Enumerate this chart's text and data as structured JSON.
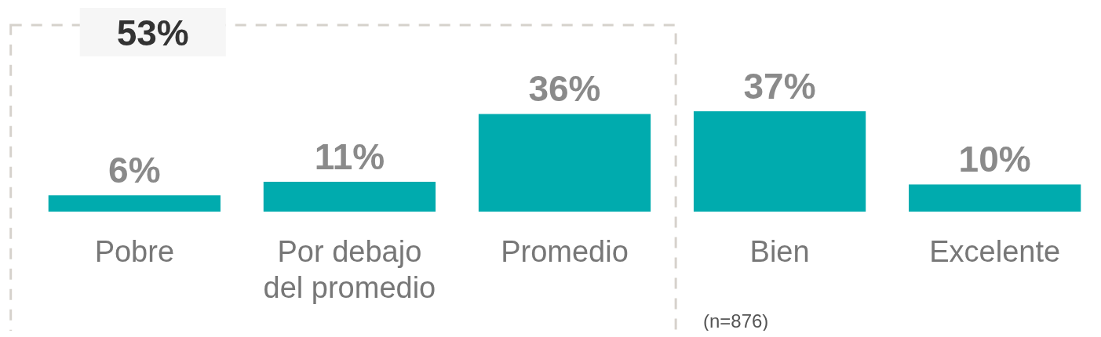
{
  "chart_data": {
    "type": "bar",
    "categories": [
      "Pobre",
      "Por debajo del promedio",
      "Promedio",
      "Bien",
      "Excelente"
    ],
    "values": [
      6,
      11,
      36,
      37,
      10
    ],
    "color": "#00abae",
    "value_labels": [
      "6%",
      "11%",
      "36%",
      "37%",
      "10%"
    ],
    "annotations": [
      "53%",
      "(n=876)"
    ]
  }
}
